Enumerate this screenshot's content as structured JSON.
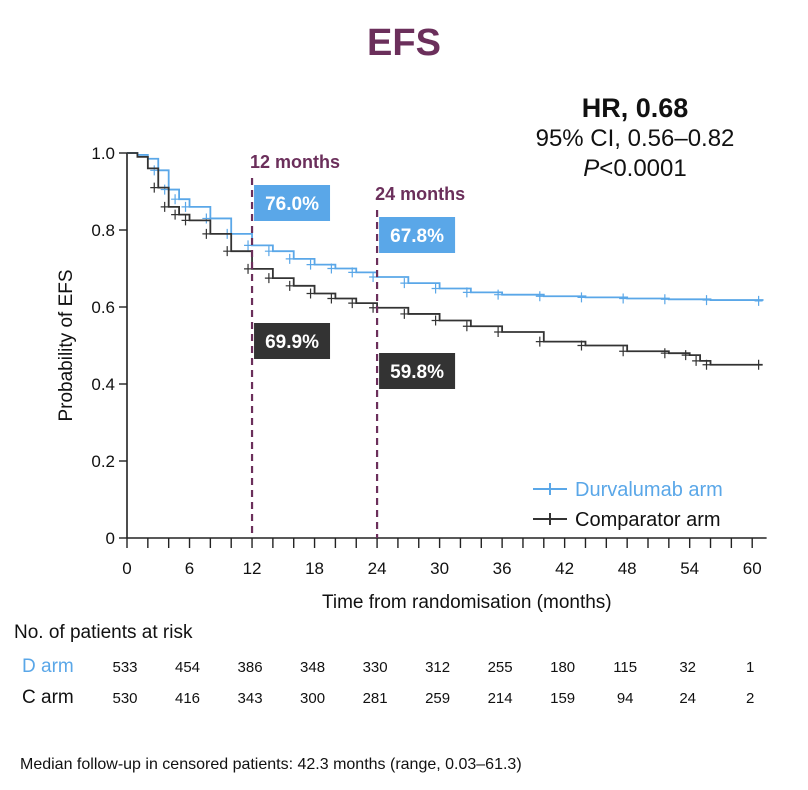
{
  "chart_data": {
    "type": "line",
    "title": "EFS",
    "xlabel": "Time from randomisation (months)",
    "ylabel": "Probability of EFS",
    "xlim": [
      0,
      61
    ],
    "ylim": [
      0,
      1.0
    ],
    "xticks": [
      0,
      6,
      12,
      18,
      24,
      30,
      36,
      42,
      48,
      54,
      60
    ],
    "yticks": [
      0,
      0.2,
      0.4,
      0.6,
      0.8,
      1.0
    ],
    "ytick_labels": [
      "0",
      "0.2",
      "0.4",
      "0.6",
      "0.8",
      "1.0"
    ],
    "legend_position": "bottom-right",
    "series": [
      {
        "name": "Durvalumab arm",
        "color": "#5aa7e8",
        "points": [
          [
            0,
            1.0
          ],
          [
            1,
            0.995
          ],
          [
            2,
            0.985
          ],
          [
            3,
            0.955
          ],
          [
            4,
            0.905
          ],
          [
            5,
            0.88
          ],
          [
            6,
            0.86
          ],
          [
            8,
            0.83
          ],
          [
            10,
            0.79
          ],
          [
            12,
            0.76
          ],
          [
            14,
            0.745
          ],
          [
            16,
            0.725
          ],
          [
            18,
            0.71
          ],
          [
            20,
            0.7
          ],
          [
            22,
            0.69
          ],
          [
            24,
            0.678
          ],
          [
            27,
            0.662
          ],
          [
            30,
            0.648
          ],
          [
            33,
            0.638
          ],
          [
            36,
            0.632
          ],
          [
            40,
            0.628
          ],
          [
            44,
            0.625
          ],
          [
            48,
            0.622
          ],
          [
            52,
            0.62
          ],
          [
            56,
            0.618
          ],
          [
            61,
            0.616
          ]
        ]
      },
      {
        "name": "Comparator arm",
        "color": "#333333",
        "points": [
          [
            0,
            1.0
          ],
          [
            1,
            0.99
          ],
          [
            2,
            0.96
          ],
          [
            3,
            0.91
          ],
          [
            4,
            0.86
          ],
          [
            5,
            0.84
          ],
          [
            6,
            0.825
          ],
          [
            8,
            0.79
          ],
          [
            10,
            0.745
          ],
          [
            12,
            0.699
          ],
          [
            14,
            0.675
          ],
          [
            16,
            0.655
          ],
          [
            18,
            0.635
          ],
          [
            20,
            0.622
          ],
          [
            22,
            0.61
          ],
          [
            24,
            0.598
          ],
          [
            27,
            0.582
          ],
          [
            30,
            0.565
          ],
          [
            33,
            0.55
          ],
          [
            36,
            0.535
          ],
          [
            40,
            0.51
          ],
          [
            44,
            0.5
          ],
          [
            48,
            0.485
          ],
          [
            52,
            0.48
          ],
          [
            54,
            0.475
          ],
          [
            55,
            0.46
          ],
          [
            56,
            0.45
          ],
          [
            61,
            0.45
          ]
        ]
      }
    ],
    "landmarks": [
      {
        "month": 12,
        "label": "12 months",
        "values": [
          {
            "series": "Durvalumab arm",
            "label": "76.0%"
          },
          {
            "series": "Comparator arm",
            "label": "69.9%"
          }
        ]
      },
      {
        "month": 24,
        "label": "24 months",
        "values": [
          {
            "series": "Durvalumab arm",
            "label": "67.8%"
          },
          {
            "series": "Comparator arm",
            "label": "59.8%"
          }
        ]
      }
    ],
    "colors": {
      "title": "#6b2f5b",
      "landmark": "#6b2f5b",
      "durvalumab": "#5aa7e8",
      "comparator": "#333333"
    }
  },
  "stats": {
    "hr": "HR, 0.68",
    "ci": "95% CI, 0.56–0.82",
    "p_prefix": "P",
    "p_suffix": "<0.0001"
  },
  "risk_table": {
    "title": "No. of patients at risk",
    "rows": [
      {
        "label": "D arm",
        "color": "#5aa7e8",
        "values": [
          "533",
          "454",
          "386",
          "348",
          "330",
          "312",
          "255",
          "180",
          "115",
          "32",
          "1"
        ]
      },
      {
        "label": "C arm",
        "color": "#111111",
        "values": [
          "530",
          "416",
          "343",
          "300",
          "281",
          "259",
          "214",
          "159",
          "94",
          "24",
          "2"
        ]
      }
    ]
  },
  "footnote": "Median follow-up in censored patients: 42.3 months (range, 0.03–61.3)"
}
